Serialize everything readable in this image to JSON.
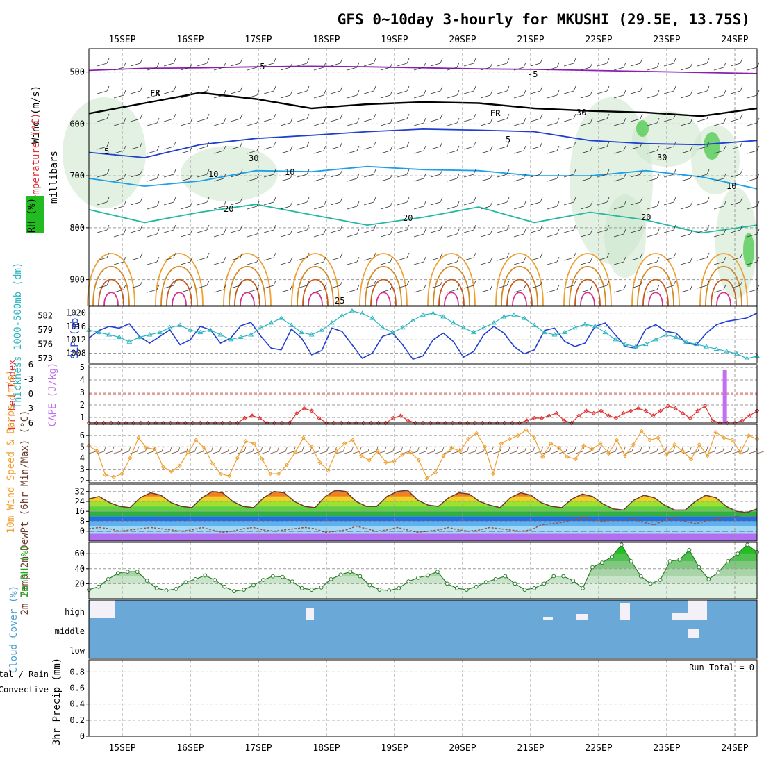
{
  "title": "GFS 0~10day 3-hourly for MKUSHI (29.5E, 13.75S)",
  "dates": [
    "15SEP",
    "16SEP",
    "17SEP",
    "18SEP",
    "19SEP",
    "20SEP",
    "21SEP",
    "22SEP",
    "23SEP",
    "24SEP"
  ],
  "colors": {
    "slp": "#1f3fd0",
    "thickness": "#2ab5c0",
    "lifted": "#e03030",
    "cape": "#c070f0",
    "wind_speed": "#f0a030",
    "barbs": "#705040",
    "temp": "#6a3a2a",
    "dewpt": "#a05040",
    "rh": "#22aa22",
    "cloud": "#6aa8d8",
    "precip_total": "#22aa22",
    "precip_conv": "#e03030"
  },
  "chart_data": [
    {
      "type": "contour",
      "panel": "upper-air",
      "ylabel": "millibars",
      "yticks": [
        500,
        600,
        700,
        800,
        900
      ],
      "ylim": [
        950,
        455
      ],
      "labels": {
        "wind": "Wind (m/s)",
        "temperature": "Temperature (°C)",
        "rh": "RH (%)",
        "freezing": "FR",
        "contour_text": [
          "-5",
          "-5",
          "10",
          "5",
          "10",
          "5",
          "10",
          "20",
          "20",
          "20",
          "25",
          "30",
          "30",
          "30"
        ]
      },
      "isotherms": [
        {
          "value": -5,
          "color": "#8a20b0",
          "p": [
            497,
            493,
            492,
            490,
            489,
            490,
            492,
            494,
            495,
            497,
            499,
            501,
            503
          ]
        },
        {
          "value": 0,
          "color": "#000000",
          "p": [
            580,
            560,
            540,
            552,
            570,
            562,
            558,
            560,
            570,
            575,
            578,
            585,
            570
          ]
        },
        {
          "value": 5,
          "color": "#1f3fd0",
          "p": [
            655,
            665,
            640,
            628,
            622,
            615,
            610,
            612,
            615,
            632,
            638,
            640,
            632
          ]
        },
        {
          "value": 10,
          "color": "#1aa0e8",
          "p": [
            705,
            720,
            710,
            690,
            692,
            682,
            688,
            690,
            700,
            700,
            690,
            702,
            725
          ]
        },
        {
          "value": 20,
          "color": "#20b8a0",
          "p": [
            765,
            790,
            770,
            755,
            775,
            795,
            780,
            760,
            790,
            770,
            785,
            810,
            795
          ]
        }
      ]
    },
    {
      "type": "line",
      "panel": "slp-thickness",
      "ylabel": "SLP (mb)",
      "y2label": "Thickness 1000-500mb (dm)",
      "yticks": [
        1008,
        1012,
        1016,
        1020
      ],
      "ylim": [
        1005,
        1022
      ],
      "y2ticks": [
        573,
        576,
        579,
        582
      ],
      "y2lim": [
        572,
        584
      ],
      "series": [
        {
          "name": "SLP (mb)",
          "values": [
            1012.5,
            1014.8,
            1016,
            1015.5,
            1016.8,
            1013,
            1011,
            1013,
            1015,
            1010.5,
            1012,
            1016,
            1015,
            1011,
            1012.5,
            1016.2,
            1017.2,
            1013,
            1009.5,
            1009,
            1015.2,
            1012.5,
            1007.5,
            1008.8,
            1015.5,
            1014.5,
            1010.5,
            1006.5,
            1008,
            1013,
            1014,
            1010.5,
            1006.2,
            1007.2,
            1012,
            1014,
            1011.5,
            1006.8,
            1008.5,
            1013.5,
            1016,
            1014,
            1010,
            1007.8,
            1009,
            1014.8,
            1015.5,
            1011.5,
            1010,
            1011,
            1016,
            1017,
            1013.5,
            1010,
            1009.5,
            1015.2,
            1016.5,
            1014.5,
            1014,
            1011,
            1010.5,
            1014,
            1016.5,
            1017.5,
            1018,
            1018.5,
            1020
          ]
        },
        {
          "name": "Thickness (dm)",
          "values": [
            579,
            578.5,
            578,
            577.5,
            576.5,
            577.5,
            578,
            578.5,
            579.5,
            580,
            579,
            578.5,
            579,
            578,
            577,
            577.5,
            578,
            579.5,
            580.5,
            581.5,
            580,
            578.5,
            578,
            579,
            580.5,
            582,
            583,
            582.5,
            581.5,
            579.5,
            578.5,
            579.5,
            581,
            582.2,
            582.5,
            581.8,
            580.5,
            579.5,
            578.5,
            579.5,
            580.5,
            581.8,
            582.2,
            581.5,
            580,
            578.5,
            578,
            578.5,
            579.5,
            580.2,
            579.8,
            578.5,
            577,
            576,
            575.5,
            576,
            577,
            578,
            577.5,
            576.5,
            576,
            575.5,
            575,
            574.5,
            574,
            573,
            573.5
          ]
        }
      ]
    },
    {
      "type": "line",
      "panel": "lifted-cape",
      "ylabel": "Lifted Index",
      "y2label": "CAPE (J/kg)",
      "yticks": [
        -6,
        -3,
        0,
        3,
        6
      ],
      "y2ticks": [
        1,
        2,
        3,
        4,
        5
      ],
      "ylim": [
        6,
        -6
      ],
      "series": [
        {
          "name": "Lifted Index",
          "values": [
            6,
            6,
            6,
            6,
            6,
            6,
            6,
            6,
            6,
            6,
            6,
            6,
            6,
            6,
            6,
            6,
            6,
            6,
            6,
            6,
            6,
            5,
            4.5,
            5,
            6,
            6,
            6,
            6,
            4,
            3,
            3.5,
            5,
            6,
            6,
            6,
            6,
            6,
            6,
            6,
            6,
            6,
            5,
            4.5,
            5.5,
            6,
            6,
            6,
            6,
            6,
            6,
            6,
            6,
            6,
            6,
            6,
            6,
            6,
            6,
            6,
            5.5,
            5,
            5,
            4.5,
            4,
            5.5,
            6,
            4.5,
            3.5,
            4,
            3.5,
            4.5,
            5,
            4,
            3.5,
            3,
            3.5,
            4.5,
            3.5,
            2.5,
            3,
            4,
            5,
            3.5,
            2.5,
            5.5,
            6,
            6,
            6,
            5.5,
            4.5,
            3.5
          ]
        },
        {
          "name": "CAPE (J/kg)",
          "values": [
            0,
            0,
            0,
            0,
            0,
            0,
            0,
            0,
            0,
            0,
            0,
            0,
            0,
            0,
            0,
            0,
            0,
            0,
            0,
            0,
            0,
            0,
            0,
            0,
            0,
            0,
            0,
            0,
            0,
            0,
            0,
            0,
            0,
            0,
            0,
            0,
            0,
            0,
            0,
            0,
            0,
            0,
            0,
            0,
            0,
            0,
            0,
            0,
            0,
            0,
            0,
            0,
            0,
            0,
            0,
            0,
            0,
            0,
            0,
            0,
            0,
            0,
            0,
            0,
            0,
            0,
            0,
            0,
            0,
            0,
            0,
            0,
            0,
            0,
            0,
            0,
            0,
            0,
            0,
            5,
            0,
            0,
            0,
            0
          ]
        }
      ]
    },
    {
      "type": "line",
      "panel": "wind",
      "ylabel": "10m Wind Speed & Barbs (m/s)",
      "yticks": [
        2,
        3,
        4,
        5,
        6
      ],
      "ylim": [
        1.8,
        7
      ],
      "series": [
        {
          "name": "10m Wind Speed",
          "values": [
            5.1,
            4.6,
            2.5,
            2.3,
            2.6,
            4,
            5.8,
            4.9,
            4.8,
            3.2,
            2.8,
            3.3,
            4.5,
            5.6,
            4.9,
            3.5,
            2.6,
            2.4,
            4,
            5.5,
            5.3,
            3.9,
            2.6,
            2.6,
            3.4,
            4.5,
            5.8,
            5,
            3.6,
            2.9,
            4.6,
            5.3,
            5.6,
            4.2,
            3.8,
            4.6,
            3.6,
            3.7,
            4.3,
            4.5,
            3.8,
            2.2,
            2.7,
            4.2,
            4.9,
            4.6,
            5.7,
            6.2,
            5,
            2.6,
            5.3,
            5.7,
            6,
            6.5,
            5.8,
            4.1,
            5.3,
            4.9,
            4.1,
            3.9,
            5.1,
            4.8,
            5.3,
            4.4,
            5.6,
            4.2,
            5.2,
            6.4,
            5.6,
            5.8,
            4.3,
            5.2,
            4.6,
            3.9,
            5.2,
            4.2,
            6.3,
            5.8,
            5.6,
            4.5,
            6,
            5.7
          ]
        }
      ]
    },
    {
      "type": "area",
      "panel": "temperature",
      "ylabel": "2m Temp 2m DewPt (6hr Min/Max) (°C)",
      "yticks": [
        0,
        8,
        16,
        24,
        32
      ],
      "ylim": [
        -8,
        38
      ],
      "series": [
        {
          "name": "2m Temp",
          "values": [
            26,
            28,
            23,
            20,
            19,
            27,
            31,
            29,
            23,
            20,
            19,
            27,
            32,
            31,
            24,
            20,
            19,
            27,
            32,
            31,
            24,
            20,
            19,
            28,
            33,
            32,
            24,
            20,
            20,
            28,
            32,
            33,
            25,
            21,
            20,
            27,
            31,
            30,
            24,
            21,
            19,
            27,
            31,
            29,
            23,
            20,
            19,
            26,
            30,
            28,
            22,
            18,
            17,
            25,
            29,
            27,
            21,
            17,
            17,
            24,
            29,
            27,
            20,
            16,
            15,
            18
          ]
        },
        {
          "name": "2m DewPt",
          "values": [
            2,
            3,
            2,
            0,
            1,
            2,
            3,
            2,
            1,
            0,
            1,
            3,
            1,
            -1,
            0,
            2,
            3,
            1,
            0,
            1,
            2,
            3,
            2,
            -1,
            0,
            1,
            4,
            2,
            0,
            1,
            3,
            1,
            -1,
            0,
            1,
            3,
            1,
            0,
            1,
            3,
            2,
            1,
            0,
            1,
            5,
            6,
            7,
            9,
            11,
            9,
            8,
            9,
            9,
            10,
            7,
            5,
            9,
            11,
            8,
            6,
            8,
            10,
            11,
            12,
            11,
            12
          ]
        }
      ]
    },
    {
      "type": "area",
      "panel": "rh",
      "ylabel": "2m RH (%)",
      "yticks": [
        20,
        40,
        60
      ],
      "ylim": [
        0,
        75
      ],
      "series": [
        {
          "name": "2m RH",
          "values": [
            12,
            16,
            26,
            34,
            36,
            36,
            24,
            14,
            11,
            13,
            22,
            26,
            31,
            25,
            16,
            10,
            12,
            18,
            25,
            30,
            29,
            23,
            14,
            12,
            15,
            26,
            32,
            36,
            30,
            18,
            12,
            11,
            14,
            23,
            28,
            31,
            36,
            20,
            14,
            12,
            16,
            22,
            26,
            30,
            20,
            12,
            14,
            20,
            30,
            30,
            24,
            14,
            42,
            48,
            56,
            72,
            50,
            30,
            20,
            25,
            50,
            52,
            65,
            42,
            26,
            35,
            50,
            60,
            72,
            62
          ]
        }
      ]
    },
    {
      "type": "heatmap",
      "panel": "cloud",
      "ylabel": "Cloud Cover (%)",
      "levels": [
        "high",
        "middle",
        "low"
      ]
    },
    {
      "type": "bar",
      "panel": "precip",
      "ylabel": "3hr Precip (mm)",
      "legend": [
        "Total / Rain",
        "Convective"
      ],
      "yticks": [
        0,
        0.2,
        0.4,
        0.6,
        0.8
      ],
      "ylim": [
        0,
        0.95
      ],
      "run_total": "Run Total = 0",
      "values": []
    }
  ]
}
